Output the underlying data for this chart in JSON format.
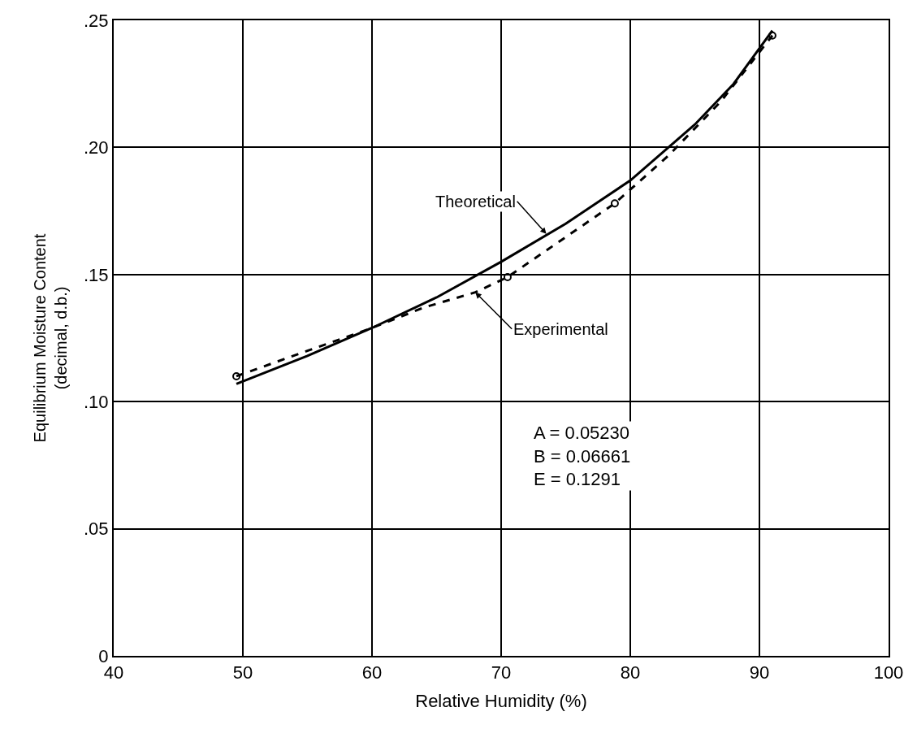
{
  "chart_data": {
    "type": "line",
    "xlabel": "Relative Humidity (%)",
    "ylabel": "Equilibrium Moisture Content\n(decimal, d.b.)",
    "xlim": [
      40,
      100
    ],
    "xticks": [
      40,
      50,
      60,
      70,
      80,
      90,
      100
    ],
    "ylim": [
      0,
      0.25
    ],
    "yticks": [
      0,
      {
        "value": 0.05,
        "label": ".05"
      },
      {
        "value": 0.1,
        "label": ".10"
      },
      {
        "value": 0.15,
        "label": ".15"
      },
      {
        "value": 0.2,
        "label": ".20"
      },
      {
        "value": 0.25,
        "label": ".25"
      }
    ],
    "grid": true,
    "series": [
      {
        "color": "#000000",
        "line_style": "solid",
        "marker": "none",
        "x": [
          49.5,
          55,
          60,
          65,
          70,
          75,
          80,
          85,
          88,
          91
        ],
        "values": [
          0.107,
          0.118,
          0.129,
          0.141,
          0.155,
          0.17,
          0.187,
          0.209,
          0.225,
          0.246
        ]
      },
      {
        "color": "#000000",
        "line_style": "dashed",
        "marker": "none",
        "x": [
          49.5,
          55,
          60,
          64,
          68,
          70.5,
          78.8,
          83,
          87,
          91
        ],
        "values": [
          0.11,
          0.12,
          0.129,
          0.137,
          0.143,
          0.149,
          0.178,
          0.197,
          0.218,
          0.244
        ]
      },
      {
        "type": "scatter",
        "color": "#000000",
        "marker": "circle",
        "x": [
          49.5,
          70.5,
          78.8,
          91
        ],
        "values": [
          0.11,
          0.149,
          0.178,
          0.244
        ]
      }
    ],
    "annotations": [
      {
        "text": "Theoretical",
        "x": 73.5,
        "y": 0.166
      },
      {
        "text": "Experimental",
        "x": 68,
        "y": 0.143
      },
      "A = 0.05230\nB = 0.06661\nE = 0.1291"
    ]
  }
}
